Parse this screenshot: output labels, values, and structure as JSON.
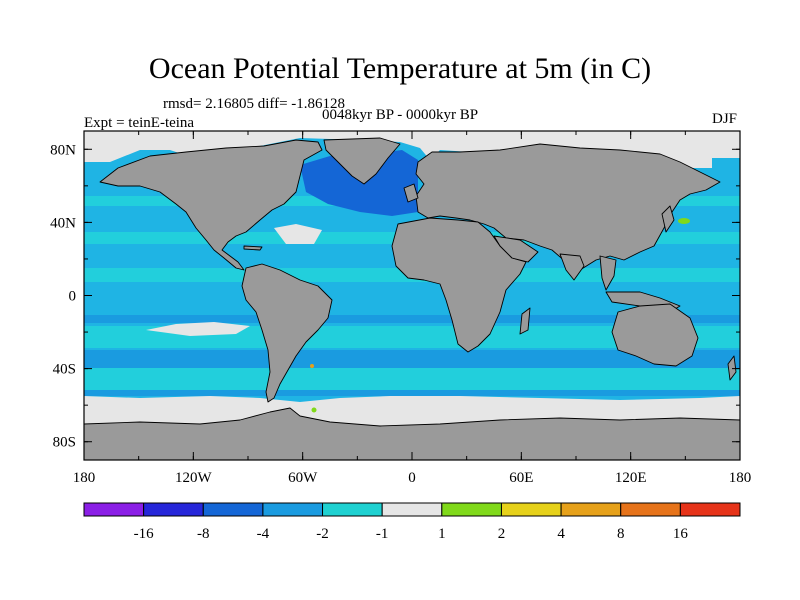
{
  "figure": {
    "title": "Ocean Potential Temperature at 5m (in C)",
    "stats_line": "rmsd= 2.16805 diff= -1.86128",
    "period": "0048kyr BP - 0000kyr BP",
    "experiment": "Expt = teinE-teina",
    "season": "DJF"
  },
  "axes": {
    "lat_labels": [
      "80N",
      "40N",
      "0",
      "40S",
      "80S"
    ],
    "lat_values": [
      80,
      40,
      0,
      -40,
      -80
    ],
    "lon_labels": [
      "180",
      "120W",
      "60W",
      "0",
      "60E",
      "120E",
      "180"
    ],
    "lon_values": [
      -180,
      -120,
      -60,
      0,
      60,
      120,
      180
    ]
  },
  "colorbar": {
    "labels": [
      "-16",
      "-8",
      "-4",
      "-2",
      "-1",
      "1",
      "2",
      "4",
      "8",
      "16"
    ],
    "colors": [
      "#8b1fe6",
      "#2626d9",
      "#1466d6",
      "#1a9be0",
      "#1fd1d1",
      "#e6e6e6",
      "#80d91a",
      "#e6d11a",
      "#e6a11a",
      "#e6731a",
      "#e63319"
    ]
  },
  "map_colors": {
    "land": "#9a9a9a",
    "ocean_base": "#1fb4e4",
    "band_light": "#22cfdc",
    "band_dark": "#1a9be0",
    "cold_strong": "#1466d6",
    "ice": "#e6e6e6",
    "coast": "#000000"
  }
}
